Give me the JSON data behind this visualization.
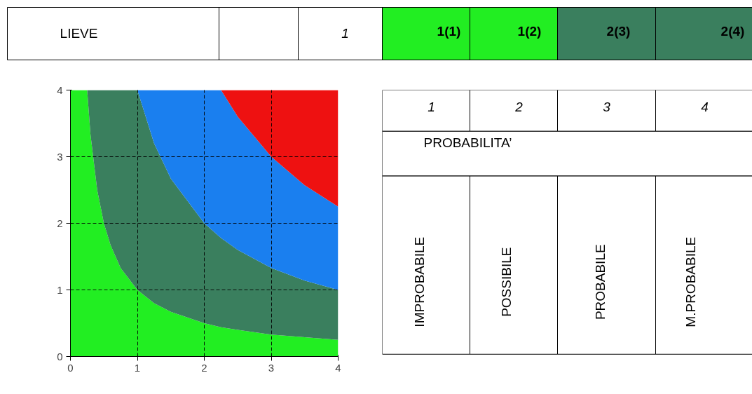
{
  "chart_data": {
    "type": "area",
    "x": [
      0,
      0.25,
      0.3,
      0.4,
      0.5,
      0.6,
      0.75,
      1,
      1.25,
      1.5,
      2,
      2.25,
      2.5,
      3,
      3.5,
      4
    ],
    "series": [
      {
        "color": "#22ee22",
        "values": [
          4,
          4,
          3.33,
          2.5,
          2,
          1.67,
          1.33,
          1,
          0.8,
          0.67,
          0.5,
          0.44,
          0.4,
          0.33,
          0.29,
          0.25
        ]
      },
      {
        "color": "#3a7f5e",
        "values": [
          0,
          0,
          0.67,
          1.5,
          2,
          2.33,
          2.67,
          3,
          2.4,
          2,
          1.5,
          1.34,
          1.2,
          1,
          0.85,
          0.75
        ]
      },
      {
        "color": "#1a7fef",
        "values": [
          0,
          0,
          0,
          0,
          0,
          0,
          0,
          0,
          0.8,
          1.33,
          2,
          2.22,
          2,
          1.67,
          1.43,
          1.25
        ]
      },
      {
        "color": "#ee1111",
        "values": [
          0,
          0,
          0,
          0,
          0,
          0,
          0,
          0,
          0,
          0,
          0,
          0,
          0.4,
          1,
          1.43,
          1.75
        ]
      }
    ],
    "stacked": true,
    "xlim": [
      0,
      4
    ],
    "ylim": [
      0,
      4
    ],
    "xticks": [
      0,
      1,
      2,
      3,
      4
    ],
    "yticks": [
      0,
      1,
      2,
      3,
      4
    ],
    "grid": true,
    "annotations": [
      "LIEVE",
      "1",
      "1(1)",
      "1(2)",
      "2(3)",
      "2(4)",
      "1",
      "2",
      "3",
      "4",
      "PROBABILITA’",
      "IMPROBABILE",
      "POSSIBILE",
      "PROBABILE",
      "M.PROBABILE"
    ]
  }
}
